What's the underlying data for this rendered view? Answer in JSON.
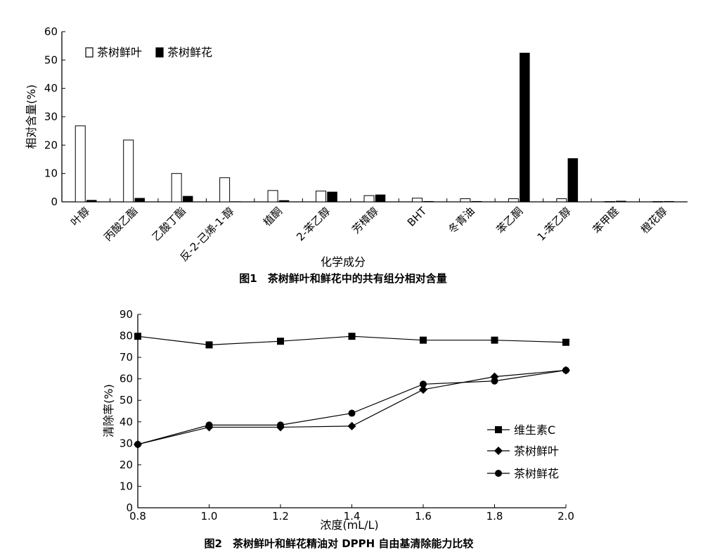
{
  "chart_data": [
    {
      "type": "bar",
      "title": "图1　茶树鲜叶和鲜花中的共有组分相对含量",
      "xlabel": "化学成分",
      "ylabel": "相对含量(%)",
      "ylim": [
        0,
        60
      ],
      "yticks": [
        "0",
        "10",
        "20",
        "30",
        "40",
        "50",
        "60"
      ],
      "legend_position": "top-left",
      "categories": [
        "叶醇",
        "丙酸乙酯",
        "乙酸丁酯",
        "反-2-己烯-1-醇",
        "植酮",
        "2-苯乙醇",
        "芳樟醇",
        "BHT",
        "冬青油",
        "苯乙酮",
        "1-苯乙醇",
        "苯甲醛",
        "橙花醇"
      ],
      "series": [
        {
          "name": "茶树鲜叶",
          "color": "#ffffff",
          "values": [
            26.8,
            21.8,
            10.0,
            8.5,
            4.0,
            3.8,
            2.2,
            1.3,
            1.1,
            1.1,
            1.1,
            0.1,
            0.1
          ]
        },
        {
          "name": "茶树鲜花",
          "color": "#000000",
          "values": [
            0.6,
            1.3,
            2.0,
            0.1,
            0.5,
            3.5,
            2.5,
            0.2,
            0.2,
            52.5,
            15.3,
            0.3,
            0.2
          ]
        }
      ]
    },
    {
      "type": "line",
      "title": "图2　茶树鲜叶和鲜花精油对 DPPH 自由基清除能力比较",
      "xlabel": "浓度(mL/L)",
      "ylabel": "清除率(%)",
      "xlim": [
        0.8,
        2.0
      ],
      "ylim": [
        0,
        90
      ],
      "xticks": [
        "0.8",
        "1.0",
        "1.2",
        "1.4",
        "1.6",
        "1.8",
        "2.0"
      ],
      "yticks": [
        "0",
        "10",
        "20",
        "30",
        "40",
        "50",
        "60",
        "70",
        "80",
        "90"
      ],
      "legend_position": "right",
      "x": [
        0.8,
        1.0,
        1.2,
        1.4,
        1.6,
        1.8,
        2.0
      ],
      "series": [
        {
          "name": "维生素C",
          "marker": "square",
          "values": [
            79.8,
            75.8,
            77.5,
            79.8,
            78.0,
            78.0,
            77.0
          ]
        },
        {
          "name": "茶树鲜叶",
          "marker": "diamond",
          "values": [
            29.5,
            37.5,
            37.5,
            38.0,
            55.0,
            61.0,
            64.0
          ]
        },
        {
          "name": "茶树鲜花",
          "marker": "circle",
          "values": [
            29.5,
            38.5,
            38.5,
            44.0,
            57.5,
            59.0,
            64.0
          ]
        }
      ]
    }
  ]
}
